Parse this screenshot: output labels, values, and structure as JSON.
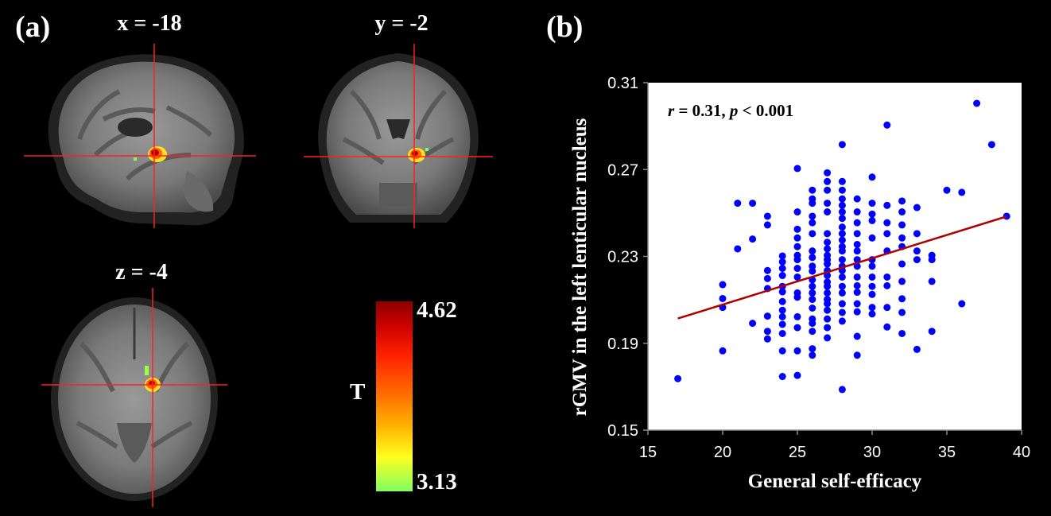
{
  "panel_a": {
    "label": "(a)",
    "sagittal_title": "x = -18",
    "coronal_title": "y = -2",
    "axial_title": "z = -4",
    "colorbar": {
      "stat_label": "T",
      "max_label": "4.62",
      "min_label": "3.13",
      "colors": [
        "#8b0000",
        "#ff2000",
        "#ff6a00",
        "#ffb000",
        "#ffff20",
        "#80ff60"
      ]
    },
    "crosshair_color": "#ff2020"
  },
  "panel_b": {
    "label": "(b)",
    "annotation_r": "r",
    "annotation_r_value": " = 0.31, ",
    "annotation_p": "p",
    "annotation_p_value": " < 0.001"
  },
  "chart_data": {
    "type": "scatter",
    "xlabel": "General self-efficacy",
    "ylabel": "rGMV in the left lenticular nucleus",
    "xlim": [
      15,
      40
    ],
    "ylim": [
      0.15,
      0.31
    ],
    "xticks": [
      "15",
      "20",
      "25",
      "30",
      "35",
      "40"
    ],
    "yticks": [
      "0.15",
      "0.19",
      "0.23",
      "0.27",
      "0.31"
    ],
    "point_color": "#0000ff",
    "fit_line_color": "#b00000",
    "fit_line": {
      "x": [
        17,
        39
      ],
      "y": [
        0.2014,
        0.2484
      ]
    },
    "grid": false,
    "points": [
      [
        17,
        0.1737
      ],
      [
        20,
        0.1865
      ],
      [
        20,
        0.2065
      ],
      [
        20,
        0.2106
      ],
      [
        20,
        0.217
      ],
      [
        21,
        0.2335
      ],
      [
        21,
        0.2545
      ],
      [
        22,
        0.1992
      ],
      [
        22,
        0.238
      ],
      [
        22,
        0.2545
      ],
      [
        23,
        0.192
      ],
      [
        23,
        0.1955
      ],
      [
        23,
        0.2025
      ],
      [
        23,
        0.2152
      ],
      [
        23,
        0.2198
      ],
      [
        23,
        0.2235
      ],
      [
        23,
        0.2445
      ],
      [
        23,
        0.2485
      ],
      [
        24,
        0.1747
      ],
      [
        24,
        0.1865
      ],
      [
        24,
        0.1945
      ],
      [
        24,
        0.1987
      ],
      [
        24,
        0.2022
      ],
      [
        24,
        0.2052
      ],
      [
        24,
        0.2092
      ],
      [
        24,
        0.2137
      ],
      [
        24,
        0.2162
      ],
      [
        24,
        0.2212
      ],
      [
        24,
        0.2245
      ],
      [
        24,
        0.2275
      ],
      [
        24,
        0.2302
      ],
      [
        25,
        0.1752
      ],
      [
        25,
        0.1865
      ],
      [
        25,
        0.1972
      ],
      [
        25,
        0.2022
      ],
      [
        25,
        0.2112
      ],
      [
        25,
        0.2132
      ],
      [
        25,
        0.2205
      ],
      [
        25,
        0.2245
      ],
      [
        25,
        0.2285
      ],
      [
        25,
        0.2305
      ],
      [
        25,
        0.2345
      ],
      [
        25,
        0.2385
      ],
      [
        25,
        0.2425
      ],
      [
        25,
        0.2505
      ],
      [
        25,
        0.2705
      ],
      [
        26,
        0.1845
      ],
      [
        26,
        0.1875
      ],
      [
        26,
        0.1955
      ],
      [
        26,
        0.1992
      ],
      [
        26,
        0.2012
      ],
      [
        26,
        0.2062
      ],
      [
        26,
        0.2102
      ],
      [
        26,
        0.2132
      ],
      [
        26,
        0.2162
      ],
      [
        26,
        0.2192
      ],
      [
        26,
        0.2232
      ],
      [
        26,
        0.2255
      ],
      [
        26,
        0.2295
      ],
      [
        26,
        0.2325
      ],
      [
        26,
        0.2405
      ],
      [
        26,
        0.2455
      ],
      [
        26,
        0.2485
      ],
      [
        26,
        0.2545
      ],
      [
        26,
        0.2565
      ],
      [
        26,
        0.2605
      ],
      [
        27,
        0.1925
      ],
      [
        27,
        0.1972
      ],
      [
        27,
        0.2012
      ],
      [
        27,
        0.2052
      ],
      [
        27,
        0.2082
      ],
      [
        27,
        0.2102
      ],
      [
        27,
        0.2132
      ],
      [
        27,
        0.2162
      ],
      [
        27,
        0.2182
      ],
      [
        27,
        0.2212
      ],
      [
        27,
        0.2235
      ],
      [
        27,
        0.2265
      ],
      [
        27,
        0.2285
      ],
      [
        27,
        0.2305
      ],
      [
        27,
        0.2335
      ],
      [
        27,
        0.2365
      ],
      [
        27,
        0.2405
      ],
      [
        27,
        0.2505
      ],
      [
        27,
        0.2545
      ],
      [
        27,
        0.2605
      ],
      [
        27,
        0.2645
      ],
      [
        27,
        0.2685
      ],
      [
        28,
        0.1687
      ],
      [
        28,
        0.2002
      ],
      [
        28,
        0.2042
      ],
      [
        28,
        0.2082
      ],
      [
        28,
        0.2132
      ],
      [
        28,
        0.2162
      ],
      [
        28,
        0.2205
      ],
      [
        28,
        0.2235
      ],
      [
        28,
        0.2255
      ],
      [
        28,
        0.2285
      ],
      [
        28,
        0.2325
      ],
      [
        28,
        0.2345
      ],
      [
        28,
        0.2375
      ],
      [
        28,
        0.2405
      ],
      [
        28,
        0.2435
      ],
      [
        28,
        0.2475
      ],
      [
        28,
        0.2505
      ],
      [
        28,
        0.2535
      ],
      [
        28,
        0.2565
      ],
      [
        28,
        0.2605
      ],
      [
        28,
        0.2645
      ],
      [
        28,
        0.2815
      ],
      [
        29,
        0.1845
      ],
      [
        29,
        0.1932
      ],
      [
        29,
        0.2045
      ],
      [
        29,
        0.2082
      ],
      [
        29,
        0.2135
      ],
      [
        29,
        0.2165
      ],
      [
        29,
        0.2205
      ],
      [
        29,
        0.2255
      ],
      [
        29,
        0.2285
      ],
      [
        29,
        0.2325
      ],
      [
        29,
        0.2355
      ],
      [
        29,
        0.2405
      ],
      [
        29,
        0.2455
      ],
      [
        29,
        0.2505
      ],
      [
        29,
        0.2565
      ],
      [
        30,
        0.2035
      ],
      [
        30,
        0.2065
      ],
      [
        30,
        0.2125
      ],
      [
        30,
        0.2162
      ],
      [
        30,
        0.2205
      ],
      [
        30,
        0.2255
      ],
      [
        30,
        0.2285
      ],
      [
        30,
        0.2385
      ],
      [
        30,
        0.2465
      ],
      [
        30,
        0.2495
      ],
      [
        30,
        0.2545
      ],
      [
        30,
        0.2665
      ],
      [
        31,
        0.1975
      ],
      [
        31,
        0.2065
      ],
      [
        31,
        0.2165
      ],
      [
        31,
        0.2205
      ],
      [
        31,
        0.2325
      ],
      [
        31,
        0.2405
      ],
      [
        31,
        0.2455
      ],
      [
        31,
        0.2535
      ],
      [
        31,
        0.2905
      ],
      [
        32,
        0.1945
      ],
      [
        32,
        0.2042
      ],
      [
        32,
        0.2105
      ],
      [
        32,
        0.2185
      ],
      [
        32,
        0.2265
      ],
      [
        32,
        0.2345
      ],
      [
        32,
        0.2385
      ],
      [
        32,
        0.2445
      ],
      [
        32,
        0.2505
      ],
      [
        32,
        0.2555
      ],
      [
        33,
        0.1872
      ],
      [
        33,
        0.2285
      ],
      [
        33,
        0.2325
      ],
      [
        33,
        0.2405
      ],
      [
        33,
        0.2525
      ],
      [
        34,
        0.1955
      ],
      [
        34,
        0.2185
      ],
      [
        34,
        0.2285
      ],
      [
        34,
        0.2305
      ],
      [
        35,
        0.2605
      ],
      [
        36,
        0.2082
      ],
      [
        36,
        0.2595
      ],
      [
        37,
        0.3005
      ],
      [
        38,
        0.2815
      ],
      [
        39,
        0.2485
      ]
    ]
  }
}
